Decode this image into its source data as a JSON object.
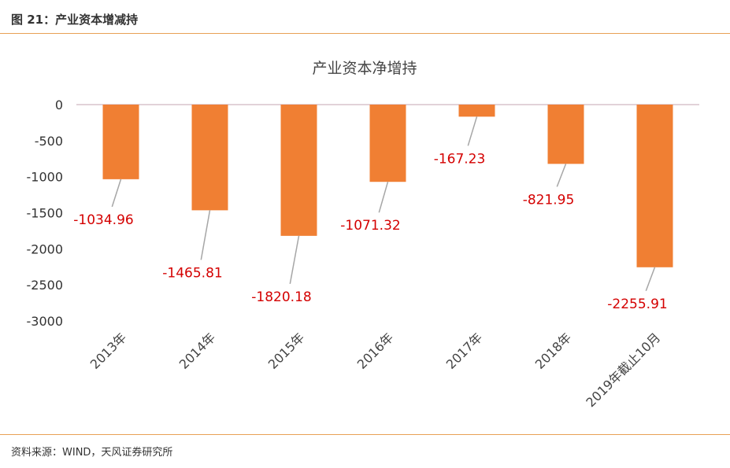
{
  "figure": {
    "title": "图 21：产业资本增减持",
    "source": "资料来源：WIND，天风证券研究所"
  },
  "colors": {
    "bar": "#f07f33",
    "rule": "#e8a055",
    "label": "#d40000",
    "leader": "#a6a6a6",
    "zero_line": "#d9c3cc"
  },
  "chart_data": {
    "type": "bar",
    "title": "产业资本净增持",
    "categories": [
      "2013年",
      "2014年",
      "2015年",
      "2016年",
      "2017年",
      "2018年",
      "2019年截止10月"
    ],
    "values": [
      -1034.96,
      -1465.81,
      -1820.18,
      -1071.32,
      -167.23,
      -821.95,
      -2255.91
    ],
    "value_labels": [
      "-1034.96",
      "-1465.81",
      "-1820.18",
      "-1071.32",
      "-167.23",
      "-821.95",
      "-2255.91"
    ],
    "ylim": [
      -3000,
      0
    ],
    "yticks": [
      0,
      -500,
      -1000,
      -1500,
      -2000,
      -2500,
      -3000
    ],
    "ytick_labels": [
      "0",
      "-500",
      "-1000",
      "-1500",
      "-2000",
      "-2500",
      "-3000"
    ],
    "grid": false,
    "legend": "none"
  }
}
